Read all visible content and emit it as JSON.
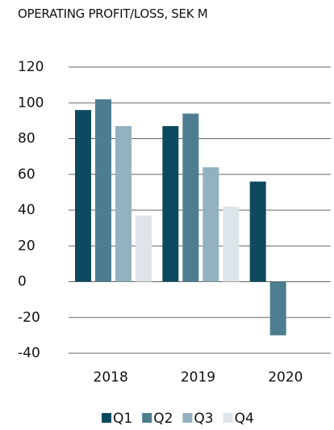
{
  "chart_data": {
    "type": "bar",
    "title": "OPERATING PROFIT/LOSS, SEK M",
    "categories": [
      "2018",
      "2019",
      "2020"
    ],
    "series": [
      {
        "name": "Q1",
        "color": "#0e4a5f",
        "values": [
          96,
          87,
          56
        ]
      },
      {
        "name": "Q2",
        "color": "#4c7e8f",
        "values": [
          102,
          94,
          -30
        ]
      },
      {
        "name": "Q3",
        "color": "#91b2be",
        "values": [
          87,
          64,
          null
        ]
      },
      {
        "name": "Q4",
        "color": "#dde5ea",
        "values": [
          37,
          42,
          null
        ]
      }
    ],
    "ylim": [
      -40,
      120
    ],
    "yticks": [
      -40,
      -20,
      0,
      20,
      40,
      60,
      80,
      100,
      120
    ],
    "grid": true,
    "legend": "bottom"
  }
}
